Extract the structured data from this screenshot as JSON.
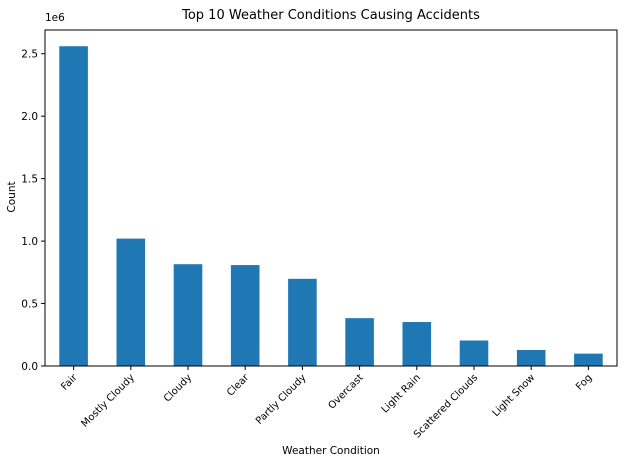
{
  "chart_data": {
    "type": "bar",
    "title": "Top 10 Weather Conditions Causing Accidents",
    "xlabel": "Weather Condition",
    "ylabel": "Count",
    "y_offset_label": "1e6",
    "categories": [
      "Fair",
      "Mostly Cloudy",
      "Cloudy",
      "Clear",
      "Partly Cloudy",
      "Overcast",
      "Light Rain",
      "Scattered Clouds",
      "Light Snow",
      "Fog"
    ],
    "values": [
      2560000,
      1020000,
      815000,
      808000,
      698000,
      383000,
      352000,
      204000,
      128000,
      99000
    ],
    "ylim": [
      0,
      2690000
    ],
    "yticks": [
      0,
      500000,
      1000000,
      1500000,
      2000000,
      2500000
    ],
    "ytick_labels": [
      "0.0",
      "0.5",
      "1.0",
      "1.5",
      "2.0",
      "2.5"
    ],
    "bar_color": "#1f77b4",
    "grid": false,
    "legend": "none"
  }
}
